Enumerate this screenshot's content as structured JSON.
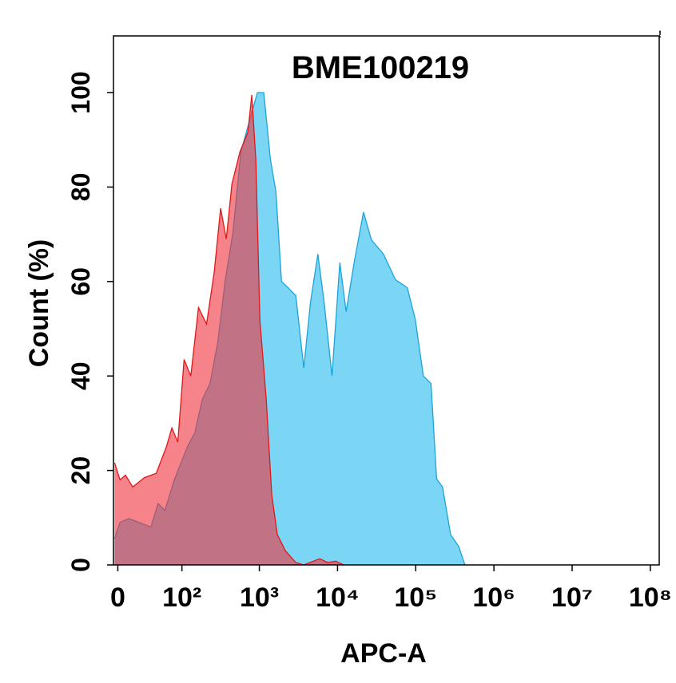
{
  "chart_data": {
    "type": "area",
    "title": "BME100219",
    "annotation": "!",
    "xlabel": "APC-A",
    "ylabel": "Count  (%)",
    "xscale": "biexponential",
    "xlim": [
      -4,
      130000000
    ],
    "xticks": [
      0,
      {
        "value": 100,
        "label": "10²"
      },
      {
        "value": 1000,
        "label": "10³"
      },
      {
        "value": 10000,
        "label": "10⁴"
      },
      {
        "value": 100000,
        "label": "10⁵"
      },
      {
        "value": 1000000,
        "label": "10⁶"
      },
      {
        "value": 10000000,
        "label": "10⁷"
      },
      {
        "value": 100000000,
        "label": "10⁸"
      }
    ],
    "ylim": [
      0,
      112
    ],
    "yticks": [
      0,
      20,
      40,
      60,
      80,
      100
    ],
    "series": [
      {
        "color": "#1ea3d8",
        "fill": "#74d4f5",
        "x": [
          -3,
          2,
          10,
          21,
          35,
          46,
          58,
          79,
          118,
          148,
          185,
          233,
          292,
          367,
          460,
          580,
          800,
          945,
          1140,
          1380,
          1630,
          1920,
          2330,
          2930,
          3700,
          4500,
          5600,
          6750,
          8500,
          10700,
          12900,
          16300,
          21500,
          27100,
          38700,
          55000,
          78000,
          98700,
          125000,
          157000,
          185000,
          220000,
          280000,
          355000,
          425000
        ],
        "values": [
          5.6,
          9,
          9.8,
          9,
          8,
          13,
          11.5,
          18,
          25,
          28,
          35,
          38.4,
          47,
          60.4,
          70.5,
          87.4,
          95.8,
          100,
          100,
          86,
          79,
          60,
          58.7,
          57,
          41.7,
          55.5,
          65.8,
          55.5,
          40,
          64,
          53.6,
          64,
          74.7,
          68.8,
          65.8,
          60.4,
          58.7,
          52,
          40,
          38.4,
          18.2,
          16.5,
          6.4,
          3.9,
          0
        ]
      },
      {
        "color": "#e01818",
        "fill": "#f0303a",
        "x": [
          -3,
          2,
          7,
          14,
          27,
          43,
          61,
          73,
          88,
          107,
          131,
          165,
          210,
          264,
          319,
          377,
          445,
          563,
          713,
          800,
          902,
          1014,
          1224,
          1443,
          1700,
          2150,
          2930,
          3700,
          5920,
          7500,
          9480,
          12000
        ],
        "values": [
          21.6,
          18,
          19,
          16.5,
          18.5,
          19.4,
          25,
          29,
          26,
          43.5,
          40,
          54.5,
          51,
          62,
          75.5,
          69,
          80.6,
          87.4,
          91.6,
          99.5,
          85.7,
          51.9,
          35,
          14.8,
          6.4,
          3,
          0.5,
          0,
          1.3,
          0.5,
          0.8,
          0
        ]
      }
    ]
  }
}
